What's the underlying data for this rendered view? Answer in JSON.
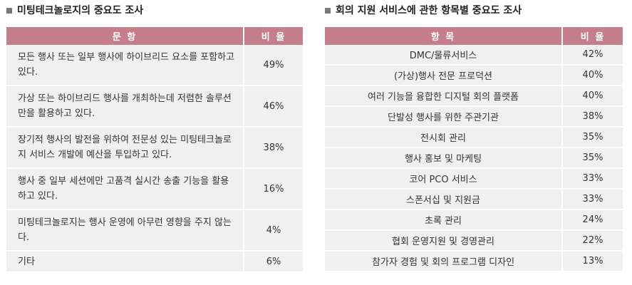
{
  "left": {
    "title": "미팅테크놀로지의 중요도 조사",
    "header": {
      "col1": "문 항",
      "col2": "비 율"
    },
    "rows": [
      {
        "item": "모든 행사 또는 일부 행사에 하이브리드 요소를 포함하고 있다.",
        "pct": "49%"
      },
      {
        "item": "가상 또는 하이브리드 행사를 개최하는데 저렴한 솔루션만을 활용하고 있다.",
        "pct": "46%"
      },
      {
        "item": "장기적 행사의 발전을 위하여 전문성 있는 미팅테크놀로지 서비스 개발에 예산을 투입하고 있다.",
        "pct": "38%"
      },
      {
        "item": "행사 중 일부 세션에만 고품격 실시간 송출 기능을 활용하고 있다.",
        "pct": "16%"
      },
      {
        "item": "미팅테크놀로지는 행사 운영에 아무런 영향을 주지 않는다.",
        "pct": "4%"
      },
      {
        "item": "기타",
        "pct": "6%"
      }
    ]
  },
  "right": {
    "title": "회의 지원 서비스에 관한 항목별 중요도 조사",
    "header": {
      "col1": "항 목",
      "col2": "비 율"
    },
    "rows": [
      {
        "item": "DMC/물류서비스",
        "pct": "42%"
      },
      {
        "item": "(가상)행사 전문 프로덕션",
        "pct": "40%"
      },
      {
        "item": "여러 기능을 융합한 디지털 회의 플랫폼",
        "pct": "40%"
      },
      {
        "item": "단발성 행사를 위한 주관기관",
        "pct": "38%"
      },
      {
        "item": "전시회 관리",
        "pct": "35%"
      },
      {
        "item": "행사 홍보 및 마케팅",
        "pct": "35%"
      },
      {
        "item": "코어 PCO 서비스",
        "pct": "33%"
      },
      {
        "item": "스폰서십 및 지원금",
        "pct": "33%"
      },
      {
        "item": "초록 관리",
        "pct": "24%"
      },
      {
        "item": "협회 운영지원 및 경영관리",
        "pct": "22%"
      },
      {
        "item": "참가자 경험 및 회의 프로그램 디자인",
        "pct": "13%"
      }
    ]
  }
}
